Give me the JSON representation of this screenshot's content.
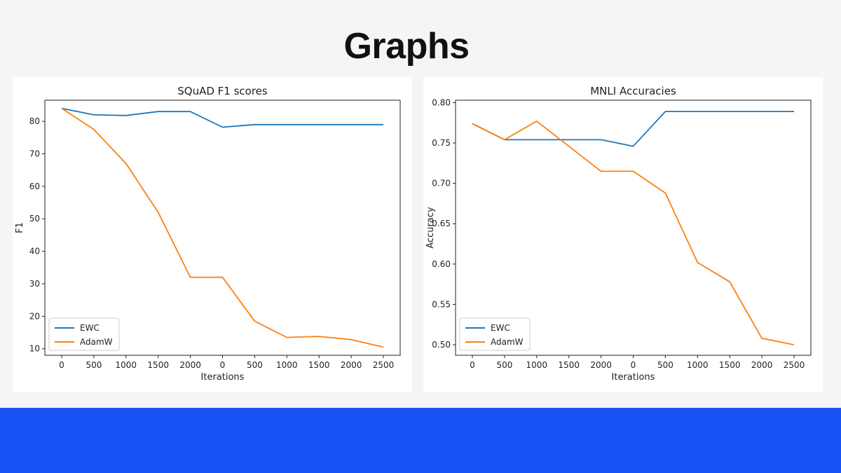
{
  "slide": {
    "title": "Graphs",
    "band_color": "#1a53f5"
  },
  "chart_data": [
    {
      "type": "line",
      "title": "SQuAD F1 scores",
      "xlabel": "Iterations",
      "ylabel": "F1",
      "x_tick_labels": [
        "0",
        "500",
        "1000",
        "1500",
        "2000",
        "0",
        "500",
        "1000",
        "1500",
        "2000",
        "2500"
      ],
      "ylim": [
        8,
        86.5
      ],
      "y_ticks": [
        10,
        20,
        30,
        40,
        50,
        60,
        70,
        80
      ],
      "y_tick_labels": [
        "10",
        "20",
        "30",
        "40",
        "50",
        "60",
        "70",
        "80"
      ],
      "grid": false,
      "legend": "lower-left",
      "series": [
        {
          "name": "EWC",
          "color": "#1f77b4",
          "values": [
            84,
            82,
            81.8,
            83,
            83,
            78.2,
            79,
            79,
            79,
            79,
            79
          ]
        },
        {
          "name": "AdamW",
          "color": "#ff7f0e",
          "values": [
            84,
            77.5,
            67,
            52,
            32,
            32,
            18.5,
            13.5,
            13.8,
            12.8,
            10.5
          ]
        }
      ]
    },
    {
      "type": "line",
      "title": "MNLI Accuracies",
      "xlabel": "Iterations",
      "ylabel": "Accuracy",
      "x_tick_labels": [
        "0",
        "500",
        "1000",
        "1500",
        "2000",
        "0",
        "500",
        "1000",
        "1500",
        "2000",
        "2500"
      ],
      "ylim": [
        0.487,
        0.803
      ],
      "y_ticks": [
        0.5,
        0.55,
        0.6,
        0.65,
        0.7,
        0.75,
        0.8
      ],
      "y_tick_labels": [
        "0.50",
        "0.55",
        "0.60",
        "0.65",
        "0.70",
        "0.75",
        "0.80"
      ],
      "grid": false,
      "legend": "lower-left",
      "series": [
        {
          "name": "EWC",
          "color": "#1f77b4",
          "values": [
            0.774,
            0.754,
            0.754,
            0.754,
            0.754,
            0.746,
            0.789,
            0.789,
            0.789,
            0.789,
            0.789
          ]
        },
        {
          "name": "AdamW",
          "color": "#ff7f0e",
          "values": [
            0.774,
            0.754,
            0.777,
            0.746,
            0.715,
            0.715,
            0.688,
            0.602,
            0.578,
            0.508,
            0.5
          ]
        }
      ]
    }
  ]
}
